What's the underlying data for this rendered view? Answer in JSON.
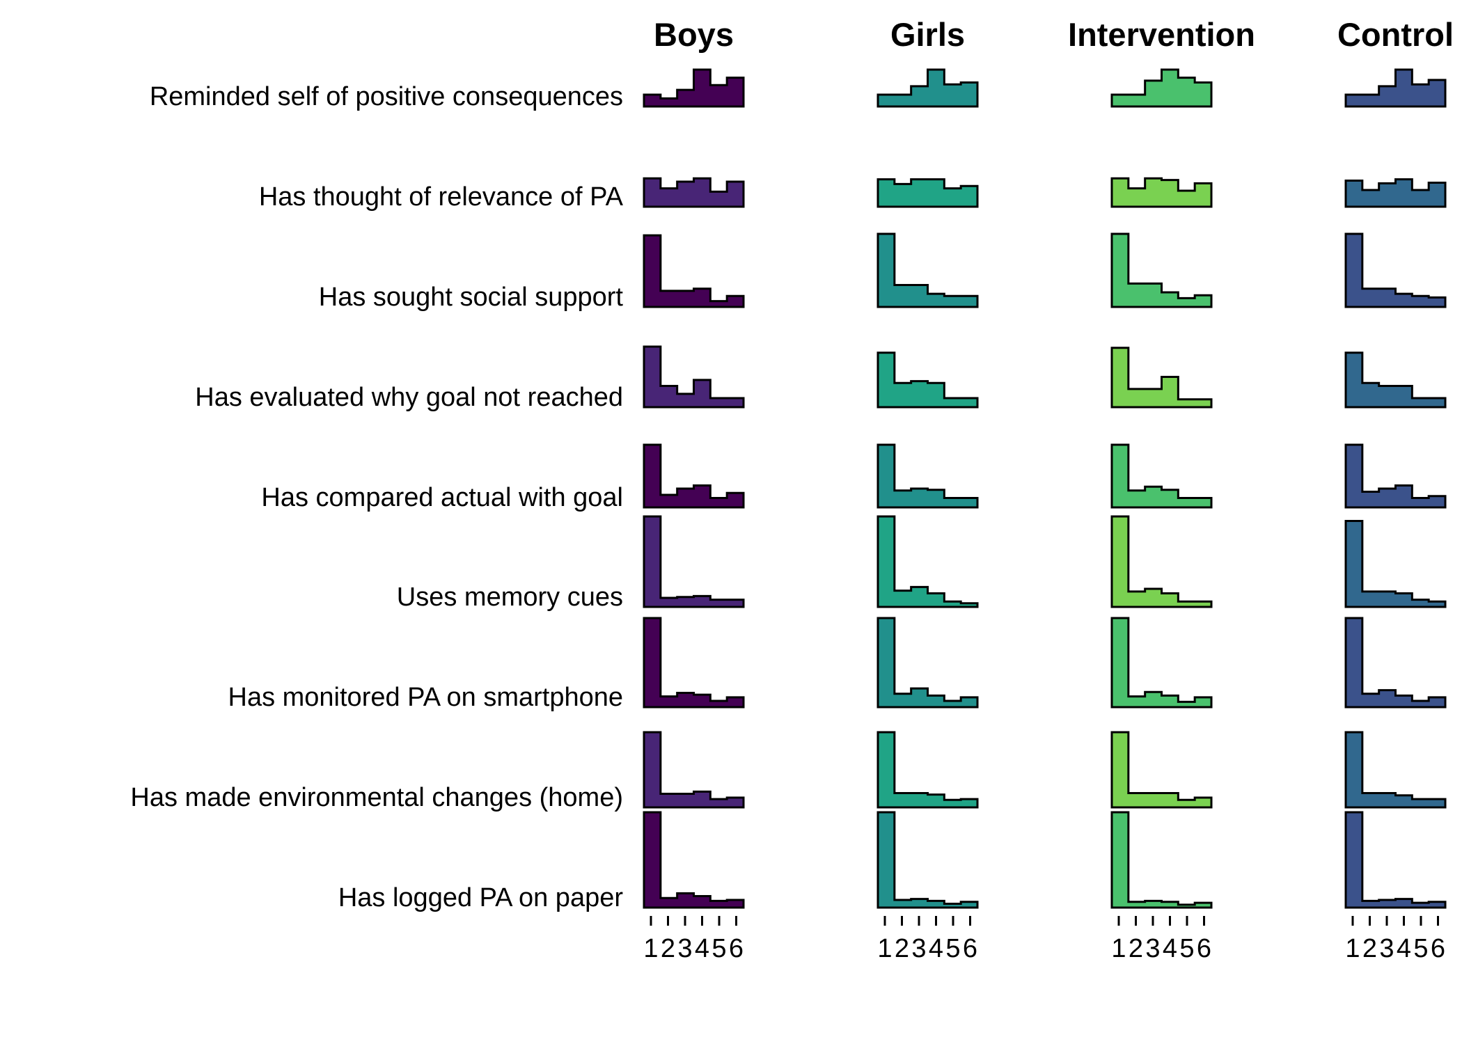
{
  "chart_data": {
    "type": "histogram",
    "x_ticks": [
      "1",
      "2",
      "3",
      "4",
      "5",
      "6"
    ],
    "columns": [
      {
        "title": "Boys",
        "color": "#440154"
      },
      {
        "title": "Girls",
        "color": "#21908C"
      },
      {
        "title": "Intervention",
        "color": "#4AC16D"
      },
      {
        "title": "Control",
        "color": "#3B528B"
      }
    ],
    "rows": [
      {
        "label": "Reminded self of positive consequences",
        "color_alt": false,
        "values": [
          [
            0.32,
            0.22,
            0.45,
            1.0,
            0.58,
            0.78
          ],
          [
            0.32,
            0.32,
            0.55,
            1.0,
            0.6,
            0.65
          ],
          [
            0.32,
            0.32,
            0.7,
            1.0,
            0.78,
            0.65
          ],
          [
            0.32,
            0.32,
            0.55,
            1.0,
            0.6,
            0.72
          ]
        ]
      },
      {
        "label": "Has thought of relevance of PA",
        "color_alt": true,
        "values": [
          [
            0.85,
            0.55,
            0.75,
            0.85,
            0.45,
            0.75
          ],
          [
            0.82,
            0.68,
            0.82,
            0.82,
            0.55,
            0.62
          ],
          [
            0.85,
            0.55,
            0.85,
            0.8,
            0.48,
            0.7
          ],
          [
            0.78,
            0.5,
            0.7,
            0.82,
            0.5,
            0.72
          ]
        ]
      },
      {
        "label": "Has sought social support",
        "color_alt": false,
        "values": [
          [
            0.98,
            0.22,
            0.22,
            0.25,
            0.08,
            0.15
          ],
          [
            1.0,
            0.3,
            0.3,
            0.18,
            0.15,
            0.15
          ],
          [
            1.0,
            0.32,
            0.32,
            0.2,
            0.12,
            0.16
          ],
          [
            1.0,
            0.25,
            0.25,
            0.18,
            0.15,
            0.13
          ]
        ]
      },
      {
        "label": "Has evaluated why goal not reached",
        "color_alt": true,
        "values": [
          [
            1.0,
            0.35,
            0.22,
            0.45,
            0.15,
            0.15
          ],
          [
            0.9,
            0.4,
            0.43,
            0.4,
            0.15,
            0.15
          ],
          [
            0.98,
            0.3,
            0.3,
            0.5,
            0.13,
            0.13
          ],
          [
            0.9,
            0.4,
            0.35,
            0.35,
            0.15,
            0.15
          ]
        ]
      },
      {
        "label": "Has compared actual with goal",
        "color_alt": false,
        "values": [
          [
            1.0,
            0.2,
            0.3,
            0.35,
            0.15,
            0.23
          ],
          [
            1.0,
            0.27,
            0.3,
            0.28,
            0.15,
            0.15
          ],
          [
            1.0,
            0.27,
            0.33,
            0.28,
            0.15,
            0.15
          ],
          [
            1.0,
            0.25,
            0.3,
            0.35,
            0.15,
            0.18
          ]
        ]
      },
      {
        "label": "Uses memory cues",
        "color_alt": true,
        "values": [
          [
            1.0,
            0.1,
            0.11,
            0.12,
            0.08,
            0.08
          ],
          [
            1.0,
            0.18,
            0.22,
            0.15,
            0.06,
            0.04
          ],
          [
            1.0,
            0.17,
            0.2,
            0.15,
            0.06,
            0.06
          ],
          [
            0.95,
            0.17,
            0.17,
            0.15,
            0.08,
            0.06
          ]
        ]
      },
      {
        "label": "Has monitored PA on smartphone",
        "color_alt": false,
        "values": [
          [
            1.0,
            0.12,
            0.16,
            0.14,
            0.07,
            0.11
          ],
          [
            1.0,
            0.15,
            0.21,
            0.13,
            0.07,
            0.11
          ],
          [
            1.0,
            0.12,
            0.17,
            0.13,
            0.06,
            0.11
          ],
          [
            1.0,
            0.15,
            0.19,
            0.13,
            0.07,
            0.11
          ]
        ]
      },
      {
        "label": "Has made environmental changes (home)",
        "color_alt": true,
        "values": [
          [
            1.0,
            0.18,
            0.18,
            0.21,
            0.11,
            0.13
          ],
          [
            1.0,
            0.19,
            0.19,
            0.17,
            0.1,
            0.11
          ],
          [
            1.0,
            0.19,
            0.19,
            0.19,
            0.1,
            0.13
          ],
          [
            1.0,
            0.19,
            0.19,
            0.16,
            0.11,
            0.11
          ]
        ]
      },
      {
        "label": "Has logged PA on paper",
        "color_alt": false,
        "values": [
          [
            1.0,
            0.1,
            0.15,
            0.12,
            0.07,
            0.08
          ],
          [
            1.0,
            0.08,
            0.09,
            0.07,
            0.04,
            0.06
          ],
          [
            1.0,
            0.06,
            0.07,
            0.06,
            0.03,
            0.05
          ],
          [
            1.0,
            0.07,
            0.08,
            0.09,
            0.05,
            0.06
          ]
        ]
      }
    ],
    "alt_colors": [
      "#482576",
      "#20A486",
      "#7AD151",
      "#31688E"
    ]
  }
}
